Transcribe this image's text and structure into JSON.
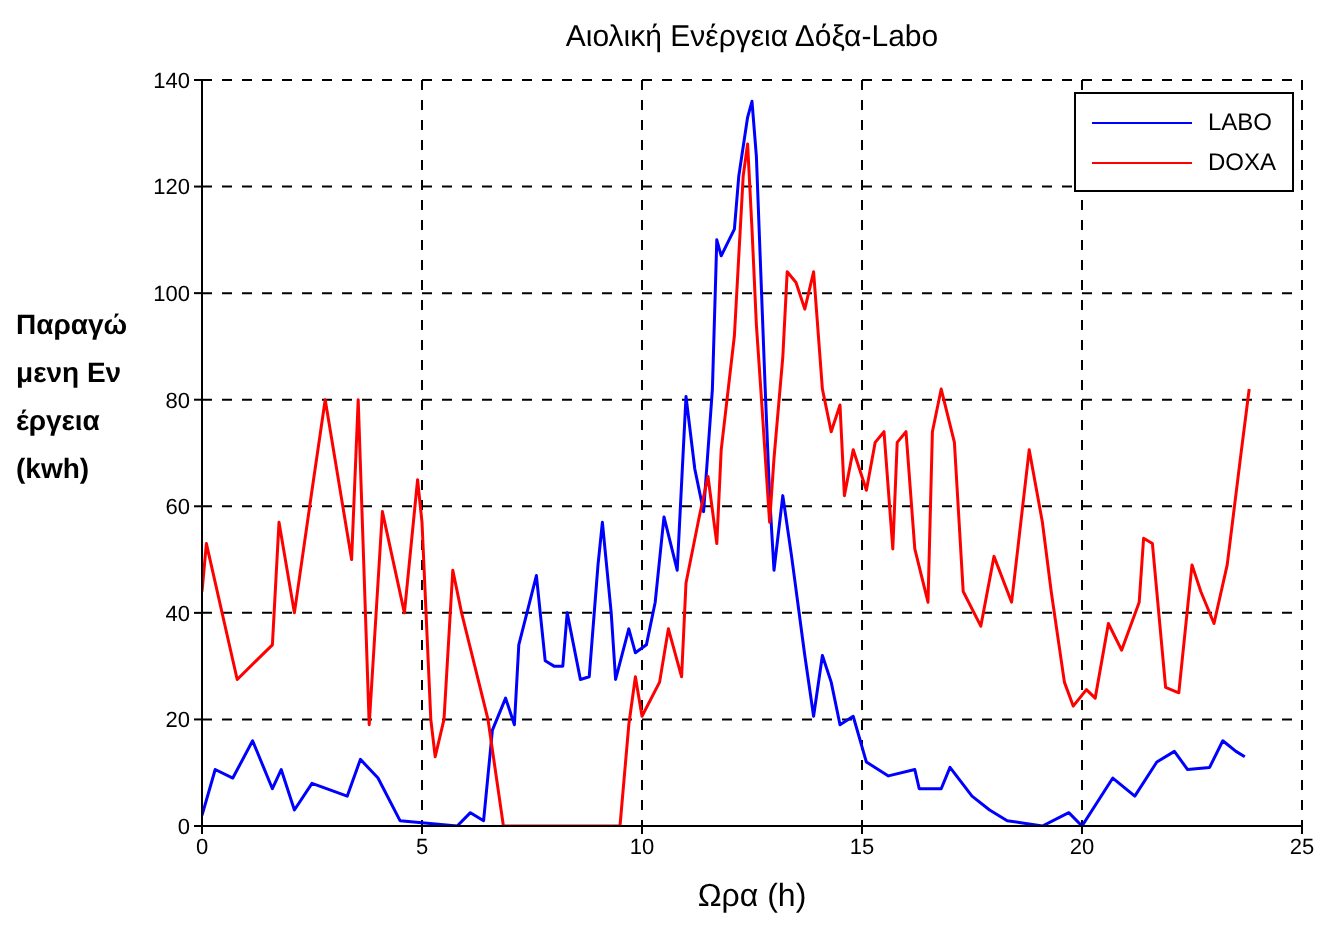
{
  "chart_data": {
    "type": "line",
    "title": "Αιολική Ενέργεια Δόξα-Labo",
    "xlabel": "Ωρα (h)",
    "ylabel": "Παραγώμενη Ενέργεια (kwh)",
    "xlim": [
      0,
      25
    ],
    "xticks": [
      0,
      5,
      10,
      15,
      20,
      25
    ],
    "ylim": [
      0,
      140
    ],
    "yticks": [
      0,
      20,
      40,
      60,
      80,
      100,
      120,
      140
    ],
    "grid": true,
    "legend": "top right",
    "line_style": "solid",
    "marker": "none",
    "series": [
      {
        "name": "LABO",
        "color": "#0000ff",
        "x": [
          0,
          0.3,
          0.7,
          1.15,
          1.6,
          1.8,
          2.1,
          2.5,
          3.3,
          3.6,
          4.0,
          4.5,
          5.8,
          6.1,
          6.4,
          6.6,
          6.9,
          7.1,
          7.2,
          7.6,
          7.8,
          8.0,
          8.2,
          8.3,
          8.6,
          8.8,
          9.0,
          9.1,
          9.3,
          9.4,
          9.7,
          9.85,
          10.1,
          10.3,
          10.5,
          10.8,
          11.0,
          11.2,
          11.4,
          11.6,
          11.7,
          11.8,
          12.1,
          12.2,
          12.4,
          12.5,
          12.6,
          12.8,
          12.9,
          13.0,
          13.2,
          13.4,
          13.7,
          13.9,
          14.1,
          14.3,
          14.5,
          14.8,
          15.1,
          15.6,
          16.2,
          16.3,
          16.8,
          17.0,
          17.5,
          17.9,
          18.3,
          19.1,
          19.7,
          20.0,
          20.7,
          21.2,
          21.7,
          22.1,
          22.4,
          22.9,
          23.2,
          23.5,
          23.7
        ],
        "values": [
          2,
          10.6,
          9,
          16,
          7,
          10.6,
          3,
          8,
          5.6,
          12.5,
          9,
          1,
          0,
          2.5,
          1,
          18,
          24,
          19,
          34,
          47,
          31,
          30,
          30,
          40,
          27.5,
          28,
          49,
          57,
          40,
          27.5,
          37,
          32.5,
          34,
          42,
          58,
          48,
          80.6,
          67,
          59,
          82,
          110,
          107,
          112,
          122,
          133,
          136,
          125.6,
          82,
          62,
          48,
          62,
          50.6,
          32,
          20.6,
          32,
          27,
          19,
          20.6,
          12,
          9.4,
          10.6,
          7,
          7,
          11,
          5.6,
          3,
          1,
          0,
          2.5,
          0,
          9,
          5.6,
          12,
          14,
          10.6,
          11,
          16,
          14,
          13
        ]
      },
      {
        "name": "DOXA",
        "color": "#ff0000",
        "x": [
          0,
          0.1,
          0.8,
          1.6,
          1.75,
          2.1,
          2.5,
          2.8,
          3.4,
          3.55,
          3.8,
          4.1,
          4.6,
          4.9,
          5.0,
          5.2,
          5.3,
          5.5,
          5.7,
          5.9,
          6.2,
          6.5,
          6.85,
          9.5,
          9.7,
          9.85,
          10.0,
          10.4,
          10.6,
          10.9,
          11.0,
          11.3,
          11.5,
          11.7,
          11.8,
          12.1,
          12.3,
          12.4,
          12.5,
          12.6,
          12.7,
          12.9,
          13.0,
          13.2,
          13.3,
          13.5,
          13.7,
          13.9,
          14.1,
          14.3,
          14.5,
          14.6,
          14.8,
          15.1,
          15.3,
          15.5,
          15.7,
          15.8,
          16.0,
          16.2,
          16.5,
          16.6,
          16.8,
          17.1,
          17.3,
          17.7,
          18.0,
          18.4,
          18.8,
          19.1,
          19.3,
          19.6,
          19.8,
          20.1,
          20.3,
          20.6,
          20.9,
          21.3,
          21.4,
          21.6,
          21.9,
          22.2,
          22.5,
          22.7,
          23.0,
          23.3,
          23.6,
          23.8
        ],
        "values": [
          44,
          53,
          27.5,
          34,
          57,
          40,
          63,
          80,
          50,
          80,
          19,
          59,
          40,
          65,
          57,
          20,
          13,
          20,
          48,
          40,
          30,
          20,
          0,
          0,
          19,
          28,
          20.6,
          27,
          37,
          28,
          45.6,
          58,
          65.6,
          53,
          70.6,
          92,
          122,
          128,
          112,
          94,
          82,
          57,
          69,
          88,
          104,
          102,
          97,
          104,
          82,
          74,
          79,
          62,
          70.6,
          63,
          72,
          74,
          52,
          72,
          74,
          52,
          42,
          74,
          82,
          72,
          44,
          37.5,
          50.6,
          42,
          70.6,
          57,
          44,
          27,
          22.5,
          25.6,
          24,
          38,
          33,
          42,
          54,
          53,
          26,
          25,
          49,
          44,
          38,
          49,
          69,
          82
        ]
      }
    ]
  }
}
